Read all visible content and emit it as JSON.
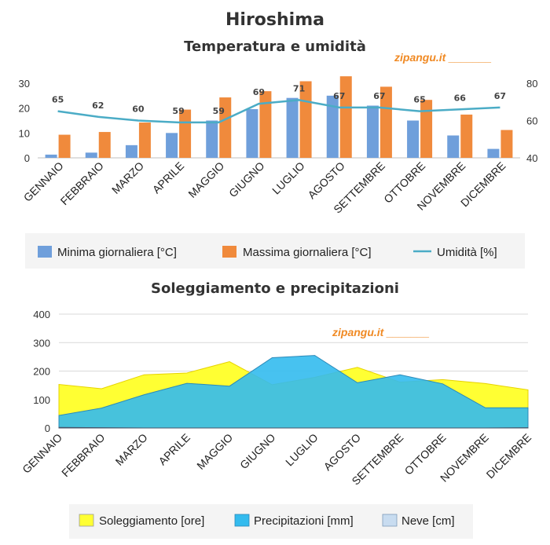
{
  "titles": {
    "main": "Hiroshima",
    "chart1": "Temperatura e umidità",
    "chart2": "Soleggiamento e precipitazioni"
  },
  "watermark": "zipangu.it _______",
  "months": [
    "GENNAIO",
    "FEBBRAIO",
    "MARZO",
    "APRILE",
    "MAGGIO",
    "GIUGNO",
    "LUGLIO",
    "AGOSTO",
    "SETTEMBRE",
    "OTTOBRE",
    "NOVEMBRE",
    "DICEMBRE"
  ],
  "colors": {
    "min_bar": "#6f9fdb",
    "max_bar": "#f08a3c",
    "humidity_line": "#4bacc6",
    "sunshine": "#ffff33",
    "precipitation": "#33bbee",
    "snow": "#c8dcf0",
    "gridline": "#d9d9d9"
  },
  "chart_data": [
    {
      "type": "bar",
      "title": "Temperatura e umidità",
      "categories": [
        "GENNAIO",
        "FEBBRAIO",
        "MARZO",
        "APRILE",
        "MAGGIO",
        "GIUGNO",
        "LUGLIO",
        "AGOSTO",
        "SETTEMBRE",
        "OTTOBRE",
        "NOVEMBRE",
        "DICEMBRE"
      ],
      "series": [
        {
          "name": "Minima giornaliera [°C]",
          "type": "bar",
          "axis": "left",
          "values": [
            1.3,
            2.1,
            5.1,
            10.0,
            15.0,
            19.6,
            24.1,
            25.0,
            21.0,
            15.0,
            9.0,
            3.6
          ]
        },
        {
          "name": "Massima giornaliera [°C]",
          "type": "bar",
          "axis": "left",
          "values": [
            9.3,
            10.4,
            14.2,
            19.4,
            24.3,
            26.8,
            30.8,
            32.8,
            28.6,
            23.3,
            17.4,
            11.2
          ]
        },
        {
          "name": "Umidità [%]",
          "type": "line",
          "axis": "right",
          "values": [
            65,
            62,
            60,
            59,
            59,
            69,
            71,
            67,
            67,
            65,
            66,
            67
          ]
        }
      ],
      "ylim_left": [
        0,
        30
      ],
      "yticks_left": [
        0,
        10,
        20,
        30
      ],
      "ylim_right": [
        40,
        80
      ],
      "yticks_right": [
        40,
        60,
        80
      ],
      "data_labels": "Umidità [%]",
      "legend": "bottom"
    },
    {
      "type": "area",
      "title": "Soleggiamento e precipitazioni",
      "categories": [
        "GENNAIO",
        "FEBBRAIO",
        "MARZO",
        "APRILE",
        "MAGGIO",
        "GIUGNO",
        "LUGLIO",
        "AGOSTO",
        "SETTEMBRE",
        "OTTOBRE",
        "NOVEMBRE",
        "DICEMBRE"
      ],
      "series": [
        {
          "name": "Soleggiamento [ore]",
          "values": [
            153,
            138,
            187,
            193,
            233,
            152,
            178,
            213,
            161,
            170,
            156,
            134
          ]
        },
        {
          "name": "Precipitazioni [mm]",
          "values": [
            44,
            70,
            117,
            157,
            147,
            247,
            255,
            159,
            187,
            155,
            71,
            71
          ]
        },
        {
          "name": "Neve [cm]",
          "values": [
            2,
            1,
            0,
            0,
            0,
            0,
            0,
            0,
            0,
            0,
            0,
            1
          ]
        }
      ],
      "ylim": [
        0,
        400
      ],
      "yticks": [
        0,
        100,
        200,
        300,
        400
      ],
      "grid": true,
      "legend": "bottom"
    }
  ],
  "legends": {
    "chart1": [
      "Minima giornaliera [°C]",
      "Massima giornaliera [°C]",
      "Umidità [%]"
    ],
    "chart2": [
      "Soleggiamento [ore]",
      "Precipitazioni [mm]",
      "Neve [cm]"
    ]
  }
}
